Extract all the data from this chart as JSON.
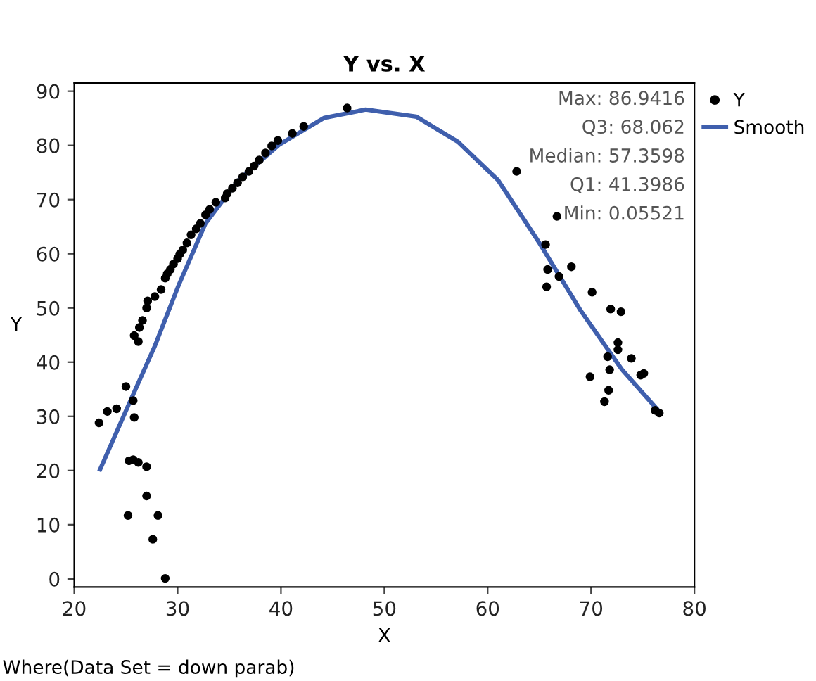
{
  "chart_data": {
    "type": "scatter",
    "title": "Y vs. X",
    "xlabel": "X",
    "ylabel": "Y",
    "xlim": [
      20,
      80
    ],
    "ylim": [
      -1.5,
      91.5
    ],
    "xticks": [
      20,
      30,
      40,
      50,
      60,
      70,
      80
    ],
    "yticks": [
      0,
      10,
      20,
      30,
      40,
      50,
      60,
      70,
      80,
      90
    ],
    "grid": false,
    "legend": "right",
    "marker": "circle",
    "annotations": [
      "Max: 86.9416",
      "Q3: 68.062",
      "Median: 57.3598",
      "Q1: 41.3986",
      "Min: 0.05521",
      "Where(Data Set = down parab)"
    ],
    "series": [
      {
        "name": "Y",
        "color": "#000000",
        "x": [
          22.4,
          23.2,
          24.1,
          25.0,
          25.3,
          25.7,
          26.2,
          27.0,
          25.2,
          25.8,
          25.7,
          27.0,
          28.1,
          27.6,
          28.8,
          25.8,
          26.3,
          26.2,
          26.6,
          27.0,
          27.1,
          27.8,
          28.4,
          28.8,
          29.0,
          29.3,
          29.6,
          30.0,
          30.2,
          30.5,
          30.9,
          31.3,
          31.8,
          32.2,
          32.7,
          33.1,
          33.7,
          34.6,
          34.8,
          35.3,
          35.8,
          36.3,
          36.9,
          37.4,
          37.9,
          38.5,
          39.1,
          39.7,
          41.1,
          42.2,
          46.4,
          62.8,
          66.7,
          65.6,
          65.8,
          68.1,
          66.9,
          65.7,
          70.1,
          71.9,
          72.9,
          72.6,
          72.6,
          71.6,
          73.9,
          71.8,
          74.8,
          75.1,
          69.9,
          71.7,
          71.3,
          76.2,
          76.6
        ],
        "values": [
          28.8,
          30.9,
          31.4,
          35.5,
          21.8,
          22.0,
          21.5,
          20.7,
          11.7,
          29.8,
          32.9,
          15.3,
          11.7,
          7.3,
          0.1,
          44.9,
          46.4,
          43.8,
          47.7,
          50.0,
          51.3,
          52.1,
          53.4,
          55.5,
          56.3,
          57.1,
          58.1,
          59.1,
          59.9,
          60.7,
          62.0,
          63.5,
          64.6,
          65.6,
          67.2,
          68.2,
          69.5,
          70.3,
          71.1,
          72.1,
          73.1,
          74.2,
          75.2,
          76.2,
          77.3,
          78.6,
          79.9,
          80.9,
          82.2,
          83.5,
          86.9,
          75.2,
          66.9,
          61.7,
          57.1,
          57.6,
          55.8,
          53.9,
          52.9,
          49.8,
          49.3,
          43.6,
          42.3,
          41.0,
          40.7,
          38.6,
          37.6,
          37.9,
          37.3,
          34.8,
          32.7,
          31.1,
          30.6
        ]
      },
      {
        "name": "Smooth",
        "type": "line",
        "color": "#3f5fad",
        "marker": "none",
        "line_style": "solid",
        "x": [
          22.5,
          25.2,
          27.8,
          30.1,
          32.7,
          35.8,
          39.8,
          44.2,
          48.2,
          53.1,
          57.1,
          61.0,
          65.0,
          69.0,
          73.0,
          76.5
        ],
        "values": [
          20.2,
          31.9,
          43.0,
          54.2,
          65.6,
          73.4,
          80.1,
          85.1,
          86.6,
          85.3,
          80.7,
          73.6,
          62.0,
          49.5,
          38.6,
          31.1
        ]
      }
    ]
  }
}
